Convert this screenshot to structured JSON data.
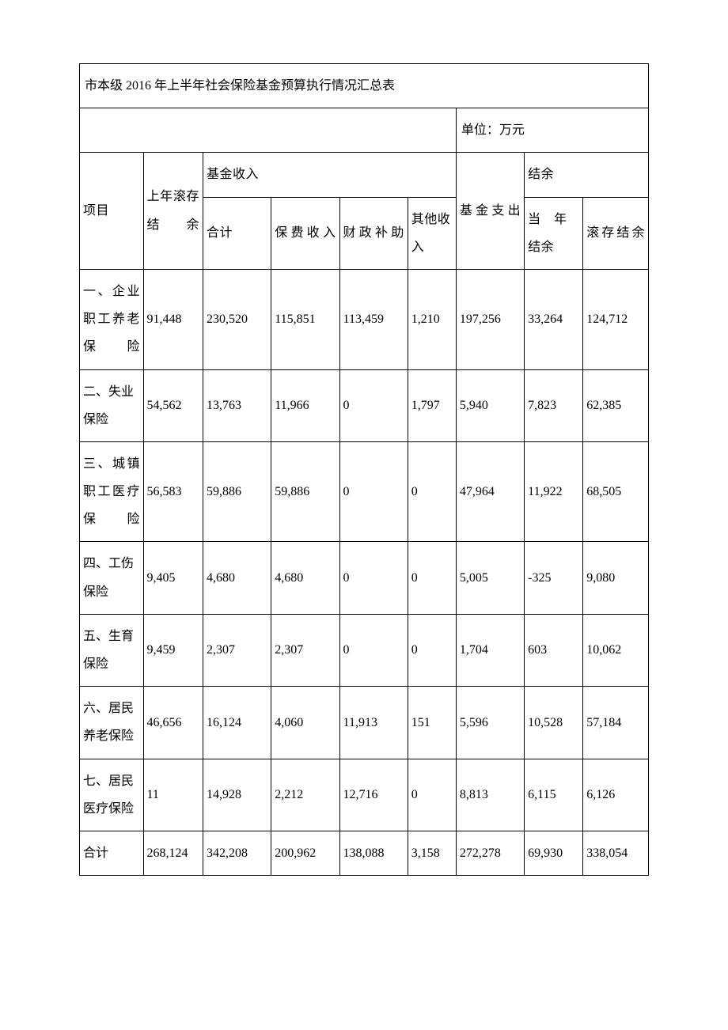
{
  "title": "市本级 2016 年上半年社会保险基金预算执行情况汇总表",
  "unit_label": "单位：万元",
  "headers": {
    "item": "项目",
    "prev_balance": "上年滚存结余",
    "income_group": "基金收入",
    "income_total": "合计",
    "income_premium": "保费收入",
    "income_fiscal": "财政补助",
    "income_other": "其他收入",
    "expenditure": "基金支出",
    "balance_group": "结余",
    "balance_current": "当　年结余",
    "balance_roll": "滚存结余"
  },
  "rows": [
    {
      "name": "一、企业职工养老保险",
      "prev": "91,448",
      "inc_total": "230,520",
      "inc_premium": "115,851",
      "inc_fiscal": "113,459",
      "inc_other": "1,210",
      "exp": "197,256",
      "bal_cur": "33,264",
      "bal_roll": "124,712"
    },
    {
      "name": "二、失业保险",
      "prev": "54,562",
      "inc_total": "13,763",
      "inc_premium": "11,966",
      "inc_fiscal": "0",
      "inc_other": "1,797",
      "exp": "5,940",
      "bal_cur": "7,823",
      "bal_roll": "62,385"
    },
    {
      "name": "三、城镇职工医疗保险",
      "prev": "56,583",
      "inc_total": "59,886",
      "inc_premium": "59,886",
      "inc_fiscal": "0",
      "inc_other": "0",
      "exp": "47,964",
      "bal_cur": "11,922",
      "bal_roll": "68,505"
    },
    {
      "name": "四、工伤保险",
      "prev": "9,405",
      "inc_total": "4,680",
      "inc_premium": "4,680",
      "inc_fiscal": "0",
      "inc_other": "0",
      "exp": "5,005",
      "bal_cur": "-325",
      "bal_roll": "9,080"
    },
    {
      "name": "五、生育保险",
      "prev": "9,459",
      "inc_total": "2,307",
      "inc_premium": "2,307",
      "inc_fiscal": "0",
      "inc_other": "0",
      "exp": "1,704",
      "bal_cur": "603",
      "bal_roll": "10,062"
    },
    {
      "name": "六、居民养老保险",
      "prev": "46,656",
      "inc_total": "16,124",
      "inc_premium": "4,060",
      "inc_fiscal": "11,913",
      "inc_other": "151",
      "exp": "5,596",
      "bal_cur": "10,528",
      "bal_roll": "57,184"
    },
    {
      "name": "七、居民医疗保险",
      "prev": "11",
      "inc_total": "14,928",
      "inc_premium": "2,212",
      "inc_fiscal": "12,716",
      "inc_other": "0",
      "exp": "8,813",
      "bal_cur": "6,115",
      "bal_roll": "6,126"
    },
    {
      "name": "合计",
      "prev": "268,124",
      "inc_total": "342,208",
      "inc_premium": "200,962",
      "inc_fiscal": "138,088",
      "inc_other": "3,158",
      "exp": "272,278",
      "bal_cur": "69,930",
      "bal_roll": "338,054"
    }
  ],
  "style": {
    "type": "table",
    "background_color": "#ffffff",
    "border_color": "#000000",
    "text_color": "#000000",
    "font_family": "SimSun",
    "body_fontsize": 16,
    "line_height": 2.2,
    "columns": 9,
    "column_widths_pct": [
      11.2,
      10.5,
      12,
      12,
      12,
      8.5,
      12,
      10.3,
      11.5
    ]
  }
}
